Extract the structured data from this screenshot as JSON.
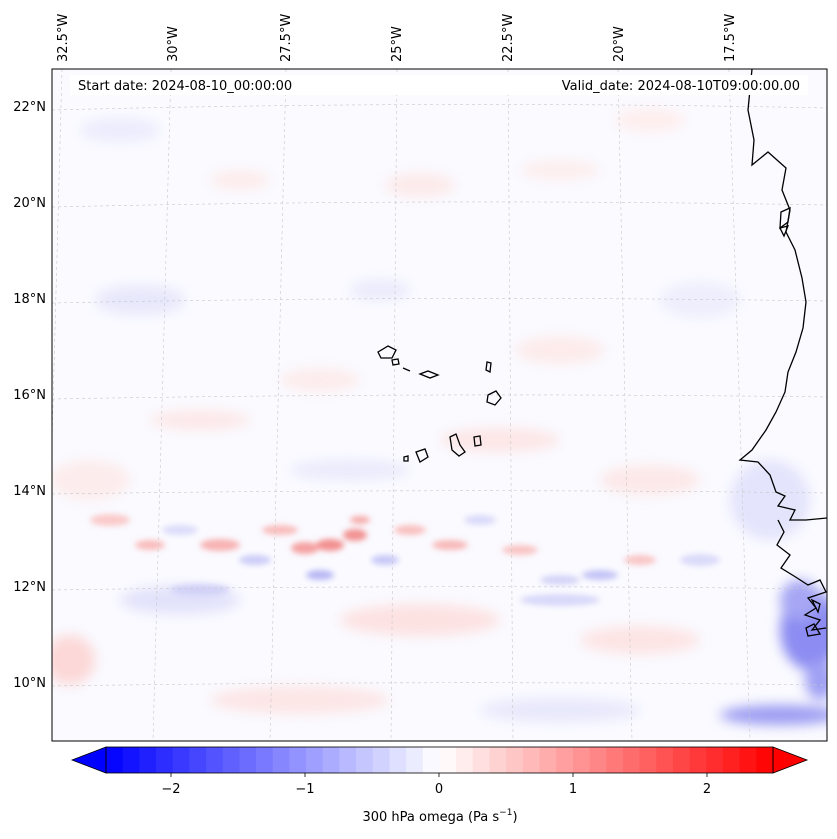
{
  "header": {
    "start_date": "Start date: 2024-08-10_00:00:00",
    "valid_date": "Valid_date: 2024-08-10T09:00:00.00"
  },
  "lon_labels": [
    "32.5°W",
    "30°W",
    "27.5°W",
    "25°W",
    "22.5°W",
    "20°W",
    "17.5°W"
  ],
  "lat_labels": [
    "22°N",
    "20°N",
    "18°N",
    "16°N",
    "14°N",
    "12°N",
    "10°N"
  ],
  "colorbar": {
    "ticks": [
      "−2",
      "−1",
      "0",
      "1",
      "2"
    ],
    "label_main": "300 hPa omega (Pa s",
    "label_sup": "−1",
    "label_end": ")",
    "min": -2.6,
    "max": 2.6,
    "low_color": "#0000ff",
    "mid_color": "#ffffff",
    "high_color": "#ff0000"
  },
  "map": {
    "background": "#fafaff",
    "coastline_color": "#000000",
    "gridline_color": "#c8c8c8"
  }
}
